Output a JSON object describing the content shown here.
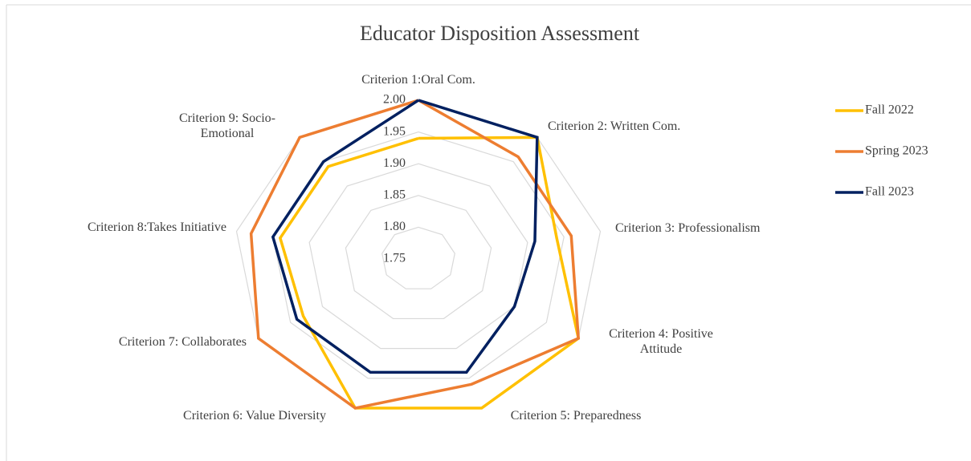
{
  "chart_data": {
    "type": "radar",
    "title": "Educator Disposition  Assessment",
    "categories": [
      "Criterion 1:Oral Com.",
      "Criterion 2: Written Com.",
      "Criterion 3: Professionalism",
      "Criterion 4: Positive Attitude",
      "Criterion 5: Preparedness",
      "Criterion 6: Value Diversity",
      "Criterion 7: Collaborates",
      "Criterion 8:Takes Initiative",
      "Criterion 9: Socio-Emotional"
    ],
    "series": [
      {
        "name": "Fall 2022",
        "color": "#ffc000",
        "values": [
          1.94,
          2.0,
          1.94,
          2.0,
          2.0,
          2.0,
          1.93,
          1.94,
          1.94
        ]
      },
      {
        "name": "Spring 2023",
        "color": "#ed7d31",
        "values": [
          2.0,
          1.96,
          1.96,
          2.0,
          1.96,
          2.0,
          2.0,
          1.98,
          2.0
        ]
      },
      {
        "name": "Fall 2023",
        "color": "#002060",
        "values": [
          2.0,
          2.0,
          1.91,
          1.9,
          1.94,
          1.94,
          1.94,
          1.95,
          1.95
        ]
      }
    ],
    "ylim": [
      1.75,
      2.0
    ],
    "yticks": [
      {
        "value": 1.75,
        "label": "1.75"
      },
      {
        "value": 1.8,
        "label": "1.80"
      },
      {
        "value": 1.85,
        "label": "1.85"
      },
      {
        "value": 1.9,
        "label": "1.90"
      },
      {
        "value": 1.95,
        "label": "1.95"
      },
      {
        "value": 2.0,
        "label": "2.00"
      }
    ],
    "grid": true,
    "legend": "right"
  }
}
